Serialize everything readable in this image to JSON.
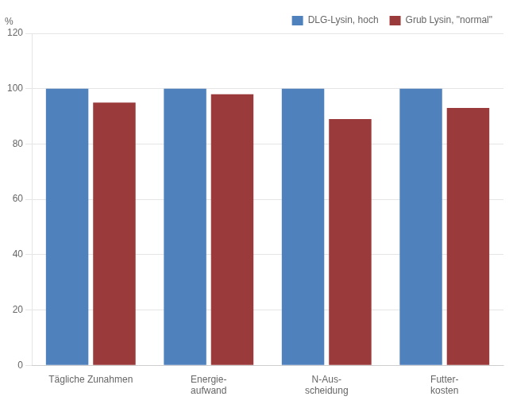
{
  "chart_data": {
    "type": "bar",
    "ylabel": "%",
    "categories": [
      "Tägliche Zunahmen",
      "Energie-\naufwand",
      "N-Aus-\nscheidung",
      "Futter-\nkosten"
    ],
    "series": [
      {
        "name": "DLG-Lysin, hoch",
        "color": "#4F81BD",
        "values": [
          100,
          100,
          100,
          100
        ]
      },
      {
        "name": "Grub Lysin, \"normal\"",
        "color": "#9B3A3A",
        "values": [
          95,
          98,
          89,
          93
        ]
      }
    ],
    "ylim": [
      0,
      120
    ],
    "yticks": [
      0,
      20,
      40,
      60,
      80,
      100,
      120
    ],
    "grid": true,
    "legend": "upper right"
  }
}
